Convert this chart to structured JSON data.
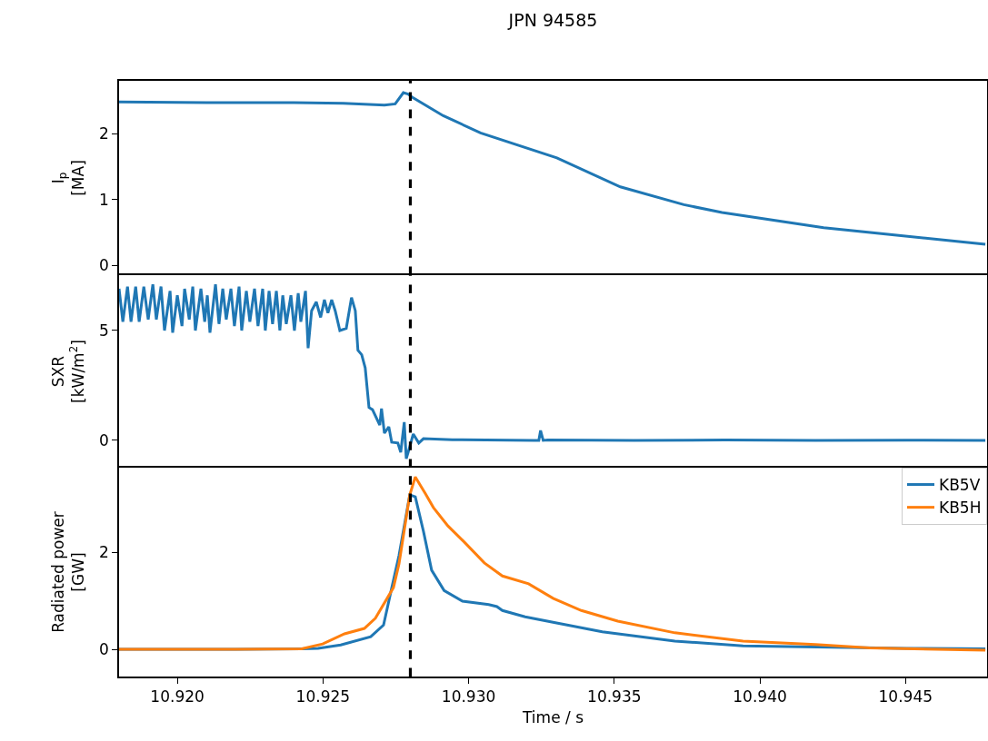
{
  "chart_data": [
    {
      "type": "line",
      "title": "JPN 94585",
      "ylabel": "I$_{p}$\n[MA]",
      "tick_labels": "y",
      "xlim": [
        10.918,
        10.9478
      ],
      "ylim": [
        -0.15,
        2.8
      ],
      "yticks": [
        0,
        1,
        2
      ],
      "series": [
        {
          "color": "#1f77b4",
          "x": [
            10.918,
            10.921,
            10.924,
            10.9257,
            10.92711,
            10.92748,
            10.92776,
            10.92792,
            10.9281,
            10.92913,
            10.93041,
            10.93303,
            10.93521,
            10.93739,
            10.9387,
            10.94219,
            10.94774
          ],
          "values": [
            2.48,
            2.47,
            2.47,
            2.46,
            2.43,
            2.45,
            2.62,
            2.6,
            2.54,
            2.27,
            2.01,
            1.63,
            1.19,
            0.92,
            0.8,
            0.57,
            0.32
          ]
        }
      ],
      "ref_lines": [
        {
          "axis": "x",
          "value": 10.928,
          "color": "#000000",
          "line_style": "dashed"
        }
      ]
    },
    {
      "type": "line",
      "ylabel": "SXR\n[kW/m$^{2}$]",
      "tick_labels": "y",
      "xlim": [
        10.918,
        10.9478
      ],
      "ylim": [
        -1.24,
        7.52
      ],
      "yticks": [
        0,
        5
      ],
      "series": [
        {
          "color": "#1f77b4",
          "x": [
            10.918,
            10.91813,
            10.91829,
            10.91841,
            10.91857,
            10.91869,
            10.91885,
            10.919,
            10.91916,
            10.91928,
            10.91944,
            10.91956,
            10.91975,
            10.91984,
            10.92,
            10.92016,
            10.92025,
            10.92041,
            10.92053,
            10.92062,
            10.92081,
            10.92094,
            10.92103,
            10.92112,
            10.92131,
            10.92143,
            10.92156,
            10.92168,
            10.92184,
            10.92196,
            10.92212,
            10.92221,
            10.92237,
            10.92249,
            10.92265,
            10.92277,
            10.92293,
            10.92302,
            10.92315,
            10.92327,
            10.9234,
            10.92352,
            10.92362,
            10.92374,
            10.9239,
            10.92402,
            10.92415,
            10.92424,
            10.9244,
            10.92449,
            10.92461,
            10.92477,
            10.92492,
            10.92505,
            10.92517,
            10.9253,
            10.92542,
            10.92558,
            10.9258,
            10.92598,
            10.92611,
            10.9262,
            10.92633,
            10.92645,
            10.92658,
            10.9267,
            10.92695,
            10.92701,
            10.92711,
            10.92726,
            10.92736,
            10.92757,
            10.92767,
            10.92779,
            10.92786,
            10.92798,
            10.9281,
            10.92829,
            10.92845,
            10.92944,
            10.93225,
            10.93241,
            10.93247,
            10.93256,
            10.93272,
            10.93568,
            10.9388,
            10.94191,
            10.94503,
            10.94774
          ],
          "values": [
            6.9,
            5.4,
            7.0,
            5.4,
            7.0,
            5.4,
            7.0,
            5.5,
            7.1,
            5.5,
            7.0,
            5.0,
            6.8,
            4.9,
            6.6,
            5.2,
            6.9,
            5.5,
            7.0,
            5.0,
            6.9,
            5.4,
            6.6,
            4.9,
            7.1,
            5.3,
            6.9,
            5.5,
            6.9,
            5.2,
            7.0,
            5.0,
            6.8,
            5.4,
            6.9,
            5.2,
            6.9,
            5.0,
            6.8,
            5.3,
            6.8,
            5.0,
            6.6,
            5.3,
            6.6,
            5.0,
            6.7,
            5.4,
            6.8,
            4.2,
            5.9,
            6.3,
            5.6,
            6.4,
            5.8,
            6.4,
            5.9,
            5.0,
            5.1,
            6.5,
            5.9,
            4.1,
            3.9,
            3.3,
            1.5,
            1.4,
            0.7,
            1.45,
            0.33,
            0.62,
            -0.08,
            -0.12,
            -0.54,
            0.83,
            -0.83,
            -0.29,
            0.29,
            -0.12,
            0.08,
            0.03,
            0.0,
            0.0,
            0.45,
            0.0,
            0.02,
            0.0,
            0.02,
            0.0,
            0.01,
            0.0
          ]
        }
      ],
      "ref_lines": [
        {
          "axis": "x",
          "value": 10.928,
          "color": "#000000",
          "line_style": "dashed"
        }
      ]
    },
    {
      "type": "line",
      "xlabel": "Time / s",
      "ylabel": "Radiated power\n[GW]",
      "legend": "top right",
      "xlim": [
        10.918,
        10.9478
      ],
      "xticks": [
        {
          "value": 10.92,
          "label": "10.920"
        },
        10.925,
        {
          "value": 10.93,
          "label": "10.930"
        },
        10.935,
        {
          "value": 10.94,
          "label": "10.940"
        },
        10.945
      ],
      "ylim": [
        -0.56,
        3.74
      ],
      "yticks": [
        0,
        2
      ],
      "series": [
        {
          "name": "KB5V",
          "color": "#1f77b4",
          "x": [
            10.918,
            10.922,
            10.92427,
            10.92483,
            10.92561,
            10.92664,
            10.92708,
            10.92733,
            10.92761,
            10.92798,
            10.92817,
            10.92845,
            10.92873,
            10.92916,
            10.92979,
            10.93069,
            10.93097,
            10.93116,
            10.93194,
            10.93306,
            10.93459,
            10.93708,
            10.93942,
            10.94503,
            10.94774
          ],
          "values": [
            0.0,
            0.0,
            0.01,
            0.02,
            0.09,
            0.26,
            0.5,
            1.18,
            1.93,
            3.18,
            3.14,
            2.43,
            1.63,
            1.21,
            0.99,
            0.92,
            0.88,
            0.8,
            0.67,
            0.54,
            0.36,
            0.17,
            0.07,
            0.02,
            0.01
          ]
        },
        {
          "name": "KB5H",
          "color": "#ff7f0e",
          "x": [
            10.918,
            10.922,
            10.92427,
            10.92499,
            10.92574,
            10.92642,
            10.9268,
            10.92742,
            10.92761,
            10.92798,
            10.92817,
            10.92851,
            10.92879,
            10.92929,
            10.92985,
            10.93054,
            10.93116,
            10.93206,
            10.9329,
            10.93387,
            10.93512,
            10.93708,
            10.93942,
            10.94191,
            10.94378,
            10.94774
          ],
          "values": [
            0.0,
            0.0,
            0.01,
            0.11,
            0.32,
            0.43,
            0.64,
            1.27,
            1.76,
            3.18,
            3.55,
            3.21,
            2.92,
            2.54,
            2.21,
            1.78,
            1.51,
            1.35,
            1.05,
            0.8,
            0.58,
            0.34,
            0.17,
            0.1,
            0.03,
            -0.02
          ]
        }
      ],
      "ref_lines": [
        {
          "axis": "x",
          "value": 10.928,
          "color": "#000000",
          "line_style": "dashed"
        }
      ]
    }
  ]
}
